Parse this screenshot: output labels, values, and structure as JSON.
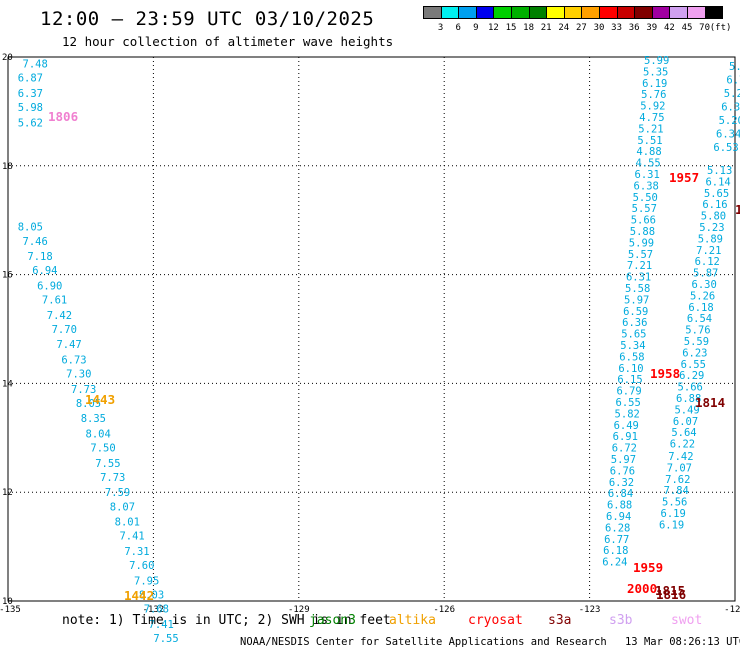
{
  "title": "12:00 – 23:59 UTC 03/10/2025",
  "subtitle": "12 hour collection of altimeter wave heights",
  "colorbar": {
    "unit_label": "(ft)",
    "labels": [
      "3",
      "6",
      "9",
      "12",
      "15",
      "18",
      "21",
      "24",
      "27",
      "30",
      "33",
      "36",
      "39",
      "42",
      "45",
      "70"
    ],
    "colors": [
      "#7a7a7a",
      "#00f0f0",
      "#00a0f0",
      "#0000f0",
      "#00d000",
      "#00b000",
      "#008000",
      "#ffff00",
      "#ffd000",
      "#ffa000",
      "#ff0000",
      "#c80000",
      "#800000",
      "#a000a0",
      "#d0a0f0",
      "#f0a0f0",
      "#000000"
    ]
  },
  "chart_data": {
    "type": "scatter",
    "title": "12:00 – 23:59 UTC 03/10/2025",
    "subtitle": "12 hour collection of altimeter wave heights",
    "xlabel": "",
    "ylabel": "",
    "xlim": [
      -135,
      -120
    ],
    "ylim": [
      10,
      20
    ],
    "grid": true,
    "x_ticks": [
      "-135",
      "-132",
      "-129",
      "-126",
      "-123",
      "-120"
    ],
    "y_ticks": [
      "10",
      "12",
      "14",
      "16",
      "18",
      "20"
    ],
    "tracks": [
      {
        "satellite": "cryosat",
        "color": "#00aadd",
        "points": [
          {
            "lon": -134.7,
            "lat": 19.88,
            "v": "7.48"
          },
          {
            "lon": -134.8,
            "lat": 19.62,
            "v": "6.87"
          },
          {
            "lon": -134.8,
            "lat": 19.34,
            "v": "6.37"
          },
          {
            "lon": -134.8,
            "lat": 19.08,
            "v": "5.98"
          },
          {
            "lon": -134.8,
            "lat": 18.8,
            "v": "5.62"
          },
          {
            "lon": -134.8,
            "lat": 16.88,
            "v": "8.05"
          },
          {
            "lon": -134.7,
            "lat": 16.62,
            "v": "7.46"
          },
          {
            "lon": -134.6,
            "lat": 16.34,
            "v": "7.18"
          },
          {
            "lon": -134.5,
            "lat": 16.08,
            "v": "6.94"
          },
          {
            "lon": -134.4,
            "lat": 15.8,
            "v": "6.90"
          },
          {
            "lon": -134.3,
            "lat": 15.54,
            "v": "7.61"
          },
          {
            "lon": -134.2,
            "lat": 15.26,
            "v": "7.42"
          },
          {
            "lon": -134.1,
            "lat": 15.0,
            "v": "7.70"
          },
          {
            "lon": -134.0,
            "lat": 14.72,
            "v": "7.47"
          },
          {
            "lon": -133.9,
            "lat": 14.44,
            "v": "6.73"
          },
          {
            "lon": -133.8,
            "lat": 14.18,
            "v": "7.30"
          },
          {
            "lon": -133.7,
            "lat": 13.9,
            "v": "7.73"
          },
          {
            "lon": -133.6,
            "lat": 13.64,
            "v": "8.05"
          },
          {
            "lon": -133.5,
            "lat": 13.36,
            "v": "8.35"
          },
          {
            "lon": -133.4,
            "lat": 13.08,
            "v": "8.04"
          },
          {
            "lon": -133.3,
            "lat": 12.82,
            "v": "7.50"
          },
          {
            "lon": -133.2,
            "lat": 12.54,
            "v": "7.55"
          },
          {
            "lon": -133.1,
            "lat": 12.28,
            "v": "7.73"
          },
          {
            "lon": -133.0,
            "lat": 12.0,
            "v": "7.59"
          },
          {
            "lon": -132.9,
            "lat": 11.74,
            "v": "8.07"
          },
          {
            "lon": -132.8,
            "lat": 11.46,
            "v": "8.01"
          },
          {
            "lon": -132.7,
            "lat": 11.2,
            "v": "7.41"
          },
          {
            "lon": -132.6,
            "lat": 10.92,
            "v": "7.31"
          },
          {
            "lon": -132.5,
            "lat": 10.66,
            "v": "7.60"
          },
          {
            "lon": -132.4,
            "lat": 10.38,
            "v": "7.95"
          },
          {
            "lon": -132.3,
            "lat": 10.12,
            "v": "8.03"
          },
          {
            "lon": -132.2,
            "lat": 9.86,
            "v": "7.68"
          },
          {
            "lon": -132.1,
            "lat": 9.58,
            "v": "7.41"
          },
          {
            "lon": -132.0,
            "lat": 9.32,
            "v": "7.55"
          }
        ]
      }
    ],
    "time_labels": [
      {
        "text": "1806",
        "color": "#f080d0"
      },
      {
        "text": "1443",
        "color": "#f0a000"
      },
      {
        "text": "1442",
        "color": "#f0a000"
      },
      {
        "text": "1957",
        "color": "#ff0000"
      },
      {
        "text": "1958",
        "color": "#ff0000"
      },
      {
        "text": "1959",
        "color": "#ff0000"
      },
      {
        "text": "2000",
        "color": "#ff0000"
      },
      {
        "text": "1814",
        "color": "#800000"
      },
      {
        "text": "1815",
        "color": "#800000"
      },
      {
        "text": "1816",
        "color": "#800000"
      }
    ],
    "right_tracks": {
      "a": [
        "5.99",
        "5.35",
        "6.19",
        "5.76",
        "5.92",
        "4.75",
        "5.21",
        "5.51",
        "4.88",
        "4.55",
        "6.31",
        "6.38",
        "5.50",
        "5.57",
        "5.66",
        "5.88",
        "5.99",
        "5.57",
        "7.21",
        "6.31",
        "5.58",
        "5.97",
        "6.59",
        "6.36",
        "5.65",
        "5.34",
        "6.58",
        "6.10",
        "6.15",
        "6.79",
        "6.55",
        "5.82",
        "6.49",
        "6.91",
        "6.72",
        "5.97",
        "6.76",
        "6.32",
        "6.84",
        "6.88",
        "6.94",
        "6.28",
        "6.77",
        "6.18",
        "6.24"
      ],
      "b": [
        "5.13",
        "6.14",
        "5.65",
        "6.16",
        "5.80",
        "5.23",
        "5.89",
        "7.21",
        "6.12",
        "5.87",
        "6.30",
        "5.26",
        "6.18",
        "6.54",
        "5.76",
        "5.59",
        "6.23",
        "6.55",
        "6.29",
        "5.66",
        "6.88",
        "5.49",
        "6.07",
        "5.64",
        "6.22",
        "7.42",
        "7.07",
        "7.62",
        "7.84",
        "5.56",
        "6.19",
        "6.19"
      ],
      "c": [
        "5.7",
        "6.7",
        "5.2",
        "6.33",
        "5.20",
        "6.34",
        "6.53"
      ]
    }
  },
  "footer": {
    "note": "note: 1) Time is in UTC; 2) SWH is in feet",
    "legend": [
      {
        "name": "jason3",
        "color": "#008000"
      },
      {
        "name": "altika",
        "color": "#f0a000"
      },
      {
        "name": "cryosat",
        "color": "#ff0000"
      },
      {
        "name": "s3a",
        "color": "#800000"
      },
      {
        "name": "s3b",
        "color": "#d0a0f0"
      },
      {
        "name": "swot",
        "color": "#f0a0f0"
      }
    ],
    "credit": "NOAA/NESDIS Center for Satellite Applications and Research",
    "timestamp": "13 Mar 08:26:13 UTC 2025"
  }
}
